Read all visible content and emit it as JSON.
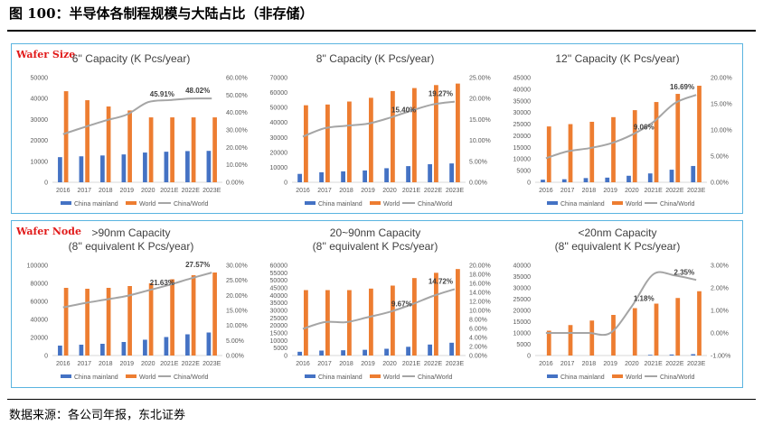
{
  "figure_title": "图 100：半导体各制程规模与大陆占比（非存储）",
  "panels": {
    "top_label": "Wafer Size",
    "bottom_label": "Wafer Node"
  },
  "source": "数据来源：各公司年报，东北证券",
  "colors": {
    "china": "#4472c4",
    "world": "#ed7d31",
    "ratio": "#a5a5a5",
    "frame": "#5ab4e0",
    "label_red": "#e11a1a"
  },
  "legend": {
    "china": "China mainland",
    "world": "World",
    "ratio": "China/World"
  },
  "chart_data": [
    {
      "type": "bar",
      "title": [
        "6'' Capacity (K Pcs/year)"
      ],
      "categories": [
        "2016",
        "2017",
        "2018",
        "2019",
        "2020",
        "2021E",
        "2022E",
        "2023E"
      ],
      "left_ticks": [
        "0",
        "10000",
        "20000",
        "30000",
        "40000",
        "50000"
      ],
      "ylim": [
        0,
        50000
      ],
      "right_ticks": [
        "0.00%",
        "10.00%",
        "20.00%",
        "30.00%",
        "40.00%",
        "50.00%",
        "60.00%"
      ],
      "y2lim": [
        0,
        60
      ],
      "series": [
        {
          "name": "China mainland",
          "values": [
            12000,
            12400,
            12800,
            13300,
            14200,
            14600,
            14900,
            15000
          ]
        },
        {
          "name": "World",
          "values": [
            43500,
            39200,
            36200,
            34300,
            31000,
            31000,
            31000,
            31000
          ]
        },
        {
          "name": "China/World",
          "values": [
            27.6,
            31.6,
            35.4,
            38.8,
            45.91,
            47.1,
            48.0,
            48.02
          ]
        }
      ],
      "annotations": [
        {
          "index": 4,
          "text": "45.91%"
        },
        {
          "index": 7,
          "text": "48.02%"
        }
      ]
    },
    {
      "type": "bar",
      "title": [
        "8'' Capacity (K Pcs/year)"
      ],
      "categories": [
        "2016",
        "2017",
        "2018",
        "2019",
        "2020",
        "2021E",
        "2022E",
        "2023E"
      ],
      "left_ticks": [
        "0",
        "10000",
        "20000",
        "30000",
        "40000",
        "50000",
        "60000",
        "70000"
      ],
      "ylim": [
        0,
        70000
      ],
      "right_ticks": [
        "0.00%",
        "5.00%",
        "10.00%",
        "15.00%",
        "20.00%",
        "25.00%"
      ],
      "y2lim": [
        0,
        25
      ],
      "series": [
        {
          "name": "China mainland",
          "values": [
            5600,
            6700,
            7300,
            7900,
            9400,
            10800,
            12100,
            12600
          ]
        },
        {
          "name": "World",
          "values": [
            51500,
            52000,
            54000,
            56500,
            61000,
            63000,
            65000,
            66000
          ]
        },
        {
          "name": "China/World",
          "values": [
            10.9,
            12.9,
            13.5,
            14.0,
            15.4,
            17.1,
            18.6,
            19.27
          ]
        }
      ],
      "annotations": [
        {
          "index": 4,
          "text": "15.40%"
        },
        {
          "index": 7,
          "text": "19.27%"
        }
      ]
    },
    {
      "type": "bar",
      "title": [
        "12'' Capacity (K Pcs/year)"
      ],
      "categories": [
        "2016",
        "2017",
        "2018",
        "2019",
        "2020",
        "2021E",
        "2022E",
        "2023E"
      ],
      "left_ticks": [
        "0",
        "5000",
        "10000",
        "15000",
        "20000",
        "25000",
        "30000",
        "35000",
        "40000",
        "45000"
      ],
      "ylim": [
        0,
        45000
      ],
      "right_ticks": [
        "0.00%",
        "5.00%",
        "10.00%",
        "15.00%",
        "20.00%"
      ],
      "y2lim": [
        0,
        20
      ],
      "series": [
        {
          "name": "China mainland",
          "values": [
            1100,
            1300,
            1800,
            2000,
            2800,
            3800,
            5400,
            7000
          ]
        },
        {
          "name": "World",
          "values": [
            24000,
            25000,
            26000,
            28000,
            31000,
            34500,
            38000,
            41500
          ]
        },
        {
          "name": "China/World",
          "values": [
            4.6,
            5.9,
            6.5,
            7.4,
            9.06,
            11.5,
            15.1,
            16.69
          ]
        }
      ],
      "annotations": [
        {
          "index": 4,
          "text": "9.06%"
        },
        {
          "index": 7,
          "text": "16.69%"
        }
      ]
    },
    {
      "type": "bar",
      "title": [
        ">90nm Capacity",
        "(8'' equivalent K Pcs/year)"
      ],
      "categories": [
        "2016",
        "2017",
        "2018",
        "2019",
        "2020",
        "2021E",
        "2022E",
        "2023E"
      ],
      "left_ticks": [
        "0",
        "20000",
        "40000",
        "60000",
        "80000",
        "100000"
      ],
      "ylim": [
        0,
        100000
      ],
      "right_ticks": [
        "0.00%",
        "5.00%",
        "10.00%",
        "15.00%",
        "20.00%",
        "25.00%",
        "30.00%"
      ],
      "y2lim": [
        0,
        30
      ],
      "series": [
        {
          "name": "China mainland",
          "values": [
            11000,
            12000,
            13000,
            15000,
            17500,
            20500,
            23500,
            25500
          ]
        },
        {
          "name": "World",
          "values": [
            75000,
            74000,
            75000,
            77000,
            80000,
            84500,
            89000,
            92000
          ]
        },
        {
          "name": "China/World",
          "values": [
            16.0,
            17.4,
            18.6,
            19.8,
            21.63,
            23.5,
            25.6,
            27.57
          ]
        }
      ],
      "annotations": [
        {
          "index": 4,
          "text": "21.63%"
        },
        {
          "index": 7,
          "text": "27.57%"
        }
      ]
    },
    {
      "type": "bar",
      "title": [
        "20~90nm Capacity",
        "(8'' equivalent K Pcs/year)"
      ],
      "categories": [
        "2016",
        "2017",
        "2018",
        "2019",
        "2020",
        "2021E",
        "2022E",
        "2023E"
      ],
      "left_ticks": [
        "0",
        "5000",
        "10000",
        "15000",
        "20000",
        "25000",
        "30000",
        "35000",
        "40000",
        "45000",
        "50000",
        "55000",
        "60000"
      ],
      "ylim": [
        0,
        60000
      ],
      "right_ticks": [
        "0.00%",
        "2.00%",
        "4.00%",
        "6.00%",
        "8.00%",
        "10.00%",
        "12.00%",
        "14.00%",
        "16.00%",
        "18.00%",
        "20.00%"
      ],
      "y2lim": [
        0,
        20
      ],
      "series": [
        {
          "name": "China mainland",
          "values": [
            2500,
            3300,
            3500,
            3800,
            4500,
            5800,
            7300,
            8500
          ]
        },
        {
          "name": "World",
          "values": [
            43500,
            43500,
            43500,
            44500,
            46500,
            51500,
            55000,
            57500
          ]
        },
        {
          "name": "China/World",
          "values": [
            5.9,
            7.4,
            7.4,
            8.5,
            9.67,
            11.3,
            13.2,
            14.72
          ]
        }
      ],
      "annotations": [
        {
          "index": 4,
          "text": "9.67%"
        },
        {
          "index": 7,
          "text": "14.72%"
        }
      ]
    },
    {
      "type": "bar",
      "title": [
        "<20nm Capacity",
        "(8'' equivalent K Pcs/year)"
      ],
      "categories": [
        "2016",
        "2017",
        "2018",
        "2019",
        "2020",
        "2021E",
        "2022E",
        "2023E"
      ],
      "left_ticks": [
        "0",
        "5000",
        "10000",
        "15000",
        "20000",
        "25000",
        "30000",
        "35000",
        "40000"
      ],
      "ylim": [
        0,
        40000
      ],
      "right_ticks": [
        "-1.00%",
        "0.00%",
        "1.00%",
        "2.00%",
        "3.00%"
      ],
      "y2lim": [
        -1,
        3
      ],
      "series": [
        {
          "name": "China mainland",
          "values": [
            0,
            0,
            0,
            0,
            0,
            300,
            450,
            600
          ]
        },
        {
          "name": "World",
          "values": [
            11000,
            13500,
            15500,
            18000,
            21000,
            23000,
            25500,
            28500
          ]
        },
        {
          "name": "China/World",
          "values": [
            0.0,
            0.0,
            0.0,
            0.0,
            1.18,
            2.6,
            2.55,
            2.35
          ]
        }
      ],
      "annotations": [
        {
          "index": 4,
          "text": "1.18%"
        },
        {
          "index": 7,
          "text": "2.35%"
        }
      ]
    }
  ]
}
